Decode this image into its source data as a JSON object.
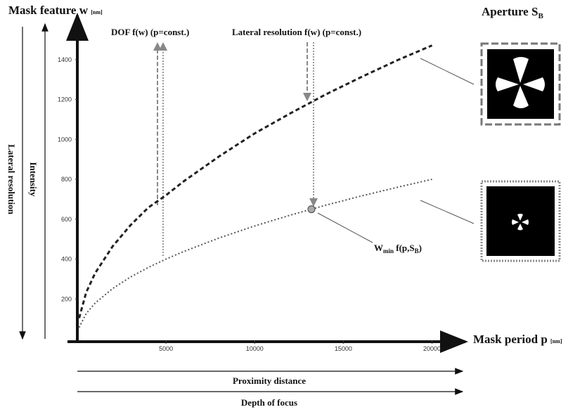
{
  "chart_data": {
    "type": "line",
    "y_label": "Mask feature w",
    "y_unit": "[nm]",
    "x_label": "Mask period p",
    "x_unit": "[nm]",
    "aperture_label": "Aperture S",
    "aperture_sub": "B",
    "annotation_dof": "DOF f(w) (p=const.)",
    "annotation_lateral": "Lateral resolution f(w) (p=const.)",
    "annotation_wmin": {
      "main": "W",
      "sub": "min",
      "text": " f(p,S",
      "sub2": "B",
      "end": ")"
    },
    "left_labels": [
      "Lateral resolution",
      "Intensity"
    ],
    "bottom_labels": [
      "Proximity distance",
      "Depth of focus"
    ],
    "x": [
      100,
      500,
      1000,
      2000,
      3000,
      4000,
      5000,
      6000,
      8000,
      10000,
      12000,
      14000,
      16000,
      18000,
      20000
    ],
    "series": [
      {
        "color": "#222222",
        "style": "dashed",
        "values": [
          104,
          233,
          329,
          465,
          570,
          658,
          720,
          790,
          915,
          1030,
          1130,
          1225,
          1312,
          1395,
          1471
        ]
      },
      {
        "color": "#555555",
        "style": "dotted",
        "values": [
          57,
          127,
          179,
          253,
          310,
          358,
          400,
          438,
          506,
          566,
          620,
          670,
          716,
          759,
          800
        ]
      }
    ],
    "point": {
      "x": 13200,
      "y": 650
    },
    "xlim": [
      0,
      22000
    ],
    "ylim": [
      0,
      1600
    ],
    "xticks": [
      5000,
      10000,
      15000,
      20000
    ],
    "yticks": [
      200,
      400,
      600,
      800,
      1000,
      1200,
      1400
    ]
  }
}
